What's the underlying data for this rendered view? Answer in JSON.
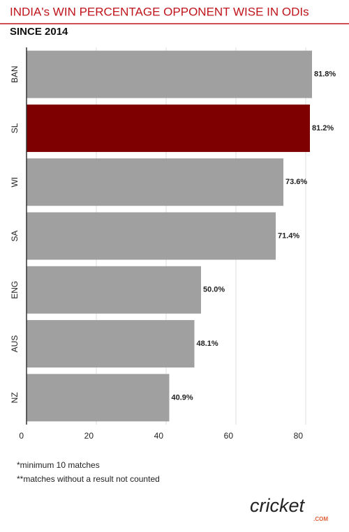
{
  "chart_data": {
    "type": "hbar",
    "title": "INDIA's WIN PERCENTAGE OPPONENT WISE IN ODIs",
    "subtitle": "SINCE 2014",
    "categories": [
      "BAN",
      "SL",
      "WI",
      "SA",
      "ENG",
      "AUS",
      "NZ"
    ],
    "values": [
      81.8,
      81.2,
      73.6,
      71.4,
      50.0,
      48.1,
      40.9
    ],
    "value_labels": [
      "81.8%",
      "81.2%",
      "73.6%",
      "71.4%",
      "50.0%",
      "48.1%",
      "40.9%"
    ],
    "colors": [
      "#a0a0a0",
      "#7f0000",
      "#a0a0a0",
      "#a0a0a0",
      "#a0a0a0",
      "#a0a0a0",
      "#a0a0a0"
    ],
    "xlim": [
      0,
      90
    ],
    "xticks": [
      0,
      20,
      40,
      60,
      80
    ],
    "grid": true,
    "notes": [
      "*minimum 10 matches",
      "**matches without a result not counted"
    ],
    "logo": [
      "cricket",
      ".COM"
    ]
  }
}
